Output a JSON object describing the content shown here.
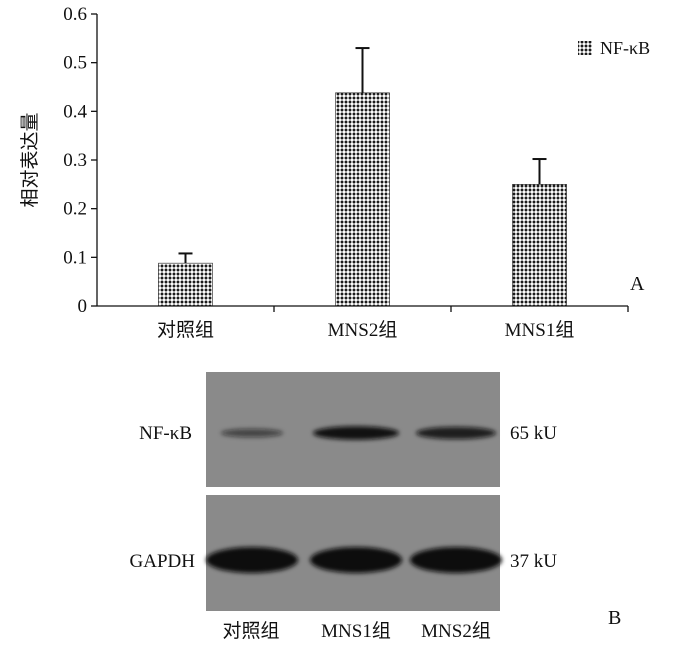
{
  "chart_data": {
    "type": "bar",
    "ylabel": "相对表达量",
    "categories": [
      "对照组",
      "MNS2组",
      "MNS1组"
    ],
    "series": [
      {
        "name": "NF-κB",
        "values": [
          0.088,
          0.438,
          0.25
        ],
        "errors": [
          0.02,
          0.092,
          0.052
        ]
      }
    ],
    "ylim": [
      0,
      0.6
    ],
    "yticks": [
      "0",
      "0.1",
      "0.2",
      "0.3",
      "0.4",
      "0.5",
      "0.6"
    ],
    "legend_position": "top-right",
    "grid": false,
    "panel_label": "A",
    "bar_pattern_color": "#1a1a1a"
  },
  "blot": {
    "panel_label": "B",
    "rows": [
      {
        "protein": "NF-κB",
        "size": "65 kU",
        "band_intensity": [
          0.35,
          0.95,
          0.8
        ]
      },
      {
        "protein": "GAPDH",
        "size": "37 kU",
        "band_intensity": [
          1.0,
          1.0,
          1.0
        ]
      }
    ],
    "lanes": [
      "对照组",
      "MNS1组",
      "MNS2组"
    ],
    "membrane_color": "#8a8a8a",
    "band_color": "#0d0d0d"
  }
}
